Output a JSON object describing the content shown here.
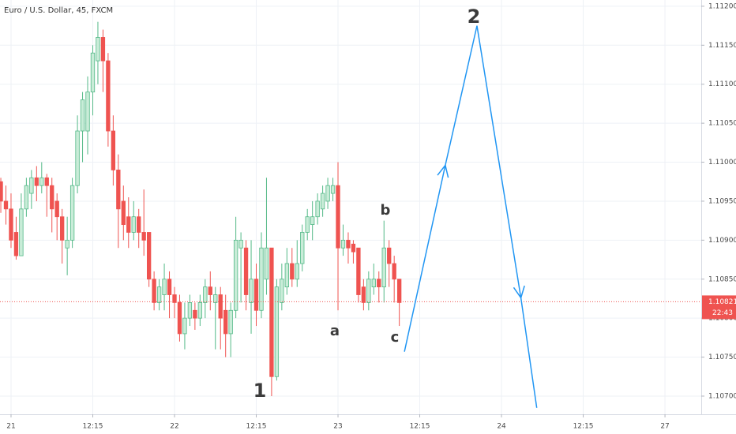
{
  "chart_data": {
    "type": "candlestick",
    "title": "Euro / U.S. Dollar, 45, FXCM",
    "x": [
      -2,
      -1,
      0,
      1,
      2,
      3,
      4,
      5,
      6,
      7,
      8,
      9,
      10,
      11,
      12,
      13,
      14,
      15,
      16,
      17,
      18,
      19,
      20,
      21,
      22,
      23,
      24,
      25,
      26,
      27,
      28,
      29,
      30,
      31,
      32,
      33,
      34,
      35,
      36,
      37,
      38,
      39,
      40,
      41,
      42,
      43,
      44,
      45,
      46,
      47,
      48,
      49,
      50,
      51,
      52,
      53,
      54,
      55,
      56,
      57,
      58,
      59,
      60,
      61,
      62,
      63,
      64,
      65,
      66,
      67,
      68,
      69,
      70,
      71,
      72,
      73,
      74,
      75,
      76
    ],
    "open": [
      1.10975,
      1.1095,
      1.1094,
      1.1091,
      1.1088,
      1.1094,
      1.1096,
      1.1098,
      1.1097,
      1.1098,
      1.1097,
      1.1095,
      1.1093,
      1.1089,
      1.109,
      1.1097,
      1.1104,
      1.1104,
      1.1109,
      1.1113,
      1.1116,
      1.1113,
      1.1104,
      1.1099,
      1.1095,
      1.1093,
      1.1091,
      1.1093,
      1.1091,
      1.1091,
      1.1085,
      1.1082,
      1.1083,
      1.1085,
      1.1083,
      1.1082,
      1.1078,
      1.108,
      1.1081,
      1.108,
      1.1082,
      1.1084,
      1.1082,
      1.1083,
      1.1081,
      1.1078,
      1.1081,
      1.1089,
      1.1089,
      1.1082,
      1.1085,
      1.1081,
      1.1085,
      1.1089,
      1.10725,
      1.1082,
      1.1084,
      1.1087,
      1.1085,
      1.1087,
      1.1091,
      1.1092,
      1.1093,
      1.1094,
      1.1095,
      1.1096,
      1.1097,
      1.1089,
      1.109,
      1.10895,
      1.1089,
      1.1084,
      1.1082,
      1.1084,
      1.1085,
      1.1084,
      1.1089,
      1.1087,
      1.1085
    ],
    "high": [
      1.1098,
      1.1097,
      1.1096,
      1.1093,
      1.1096,
      1.1098,
      1.1099,
      1.10995,
      1.11,
      1.10985,
      1.1098,
      1.1096,
      1.1094,
      1.1093,
      1.1098,
      1.1106,
      1.1109,
      1.1111,
      1.1115,
      1.1118,
      1.1117,
      1.1114,
      1.1106,
      1.1101,
      1.1097,
      1.10955,
      1.1095,
      1.1094,
      1.10965,
      1.1091,
      1.1086,
      1.1085,
      1.1087,
      1.1086,
      1.1084,
      1.1083,
      1.1082,
      1.1083,
      1.1082,
      1.1083,
      1.1085,
      1.1086,
      1.1084,
      1.1084,
      1.1083,
      1.1082,
      1.1093,
      1.1091,
      1.109,
      1.109,
      1.1087,
      1.1091,
      1.1098,
      1.1089,
      1.1085,
      1.1087,
      1.1089,
      1.1089,
      1.109,
      1.1092,
      1.1094,
      1.1095,
      1.1096,
      1.1097,
      1.1098,
      1.1098,
      1.11,
      1.1092,
      1.1091,
      1.109,
      1.1089,
      1.1085,
      1.1086,
      1.1087,
      1.1086,
      1.10925,
      1.109,
      1.1088,
      1.1085
    ],
    "low": [
      1.10935,
      1.1092,
      1.1089,
      1.10875,
      1.1088,
      1.1093,
      1.1094,
      1.1095,
      1.1096,
      1.1093,
      1.1091,
      1.109,
      1.1087,
      1.10855,
      1.1089,
      1.1096,
      1.11,
      1.1101,
      1.1106,
      1.111,
      1.1109,
      1.1102,
      1.1097,
      1.1089,
      1.109,
      1.1089,
      1.109,
      1.1089,
      1.1088,
      1.1084,
      1.1081,
      1.1081,
      1.1081,
      1.108,
      1.108,
      1.1077,
      1.1076,
      1.1079,
      1.10785,
      1.1079,
      1.108,
      1.1081,
      1.1076,
      1.1076,
      1.1075,
      1.1075,
      1.108,
      1.1082,
      1.1081,
      1.1078,
      1.1079,
      1.108,
      1.1083,
      1.107,
      1.1072,
      1.1081,
      1.1083,
      1.1084,
      1.1084,
      1.1086,
      1.109,
      1.109,
      1.1092,
      1.1093,
      1.1094,
      1.1095,
      1.1081,
      1.1088,
      1.1087,
      1.1087,
      1.1082,
      1.1081,
      1.1081,
      1.1083,
      1.1082,
      1.1082,
      1.1084,
      1.1082,
      1.1079
    ],
    "close": [
      1.1095,
      1.1094,
      1.109,
      1.1088,
      1.1094,
      1.1097,
      1.1098,
      1.1097,
      1.1098,
      1.1097,
      1.1094,
      1.1093,
      1.109,
      1.109,
      1.1097,
      1.1104,
      1.1108,
      1.1109,
      1.1114,
      1.1116,
      1.1113,
      1.1104,
      1.1099,
      1.1094,
      1.1092,
      1.1091,
      1.1093,
      1.1091,
      1.109,
      1.1085,
      1.1082,
      1.1084,
      1.1085,
      1.1083,
      1.1082,
      1.1078,
      1.108,
      1.1082,
      1.108,
      1.1082,
      1.1084,
      1.1083,
      1.1083,
      1.108,
      1.1078,
      1.1081,
      1.109,
      1.109,
      1.1083,
      1.1085,
      1.1081,
      1.1089,
      1.1089,
      1.10725,
      1.1084,
      1.1085,
      1.1087,
      1.1085,
      1.1087,
      1.1091,
      1.1093,
      1.1093,
      1.1095,
      1.1096,
      1.1097,
      1.1097,
      1.1089,
      1.109,
      1.1089,
      1.10885,
      1.1083,
      1.1082,
      1.1085,
      1.1085,
      1.1084,
      1.1089,
      1.1087,
      1.1085,
      1.1082
    ],
    "up_color": "#53b987",
    "down_color": "#ef5350",
    "projection": {
      "color": "#2196f3",
      "x": [
        77.0,
        85.0,
        91.2,
        99.8,
        102.9
      ],
      "y": [
        1.10757,
        1.10996,
        1.11175,
        1.10826,
        1.10685
      ]
    },
    "last_price": 1.10821,
    "countdown": "22:43",
    "annotations": [
      "1",
      "2",
      "a",
      "b",
      "c"
    ],
    "xlim": [
      -2.16,
      135.1
    ],
    "xticks": [
      {
        "value": 0,
        "label": "21"
      },
      {
        "value": 16,
        "label": "12:15"
      },
      {
        "value": 32,
        "label": "22"
      },
      {
        "value": 48,
        "label": "12:15"
      },
      {
        "value": 64,
        "label": "23"
      },
      {
        "value": 80,
        "label": "12:15"
      },
      {
        "value": 96,
        "label": "24"
      },
      {
        "value": 112,
        "label": "12:15"
      },
      {
        "value": 128,
        "label": "27"
      }
    ],
    "ylim": [
      1.106767,
      1.11208
    ],
    "yticks": [
      {
        "value": 1.107,
        "label": "1.10700"
      },
      {
        "value": 1.1075,
        "label": "1.10750"
      },
      {
        "value": 1.108,
        "label": "1.10800"
      },
      {
        "value": 1.1085,
        "label": "1.10850"
      },
      {
        "value": 1.109,
        "label": "1.10900"
      },
      {
        "value": 1.1095,
        "label": "1.10950"
      },
      {
        "value": 1.11,
        "label": "1.11000"
      },
      {
        "value": 1.1105,
        "label": "1.11050"
      },
      {
        "value": 1.111,
        "label": "1.11100"
      },
      {
        "value": 1.1115,
        "label": "1.11150"
      },
      {
        "value": 1.112,
        "label": "1.11200"
      }
    ],
    "grid": true
  }
}
